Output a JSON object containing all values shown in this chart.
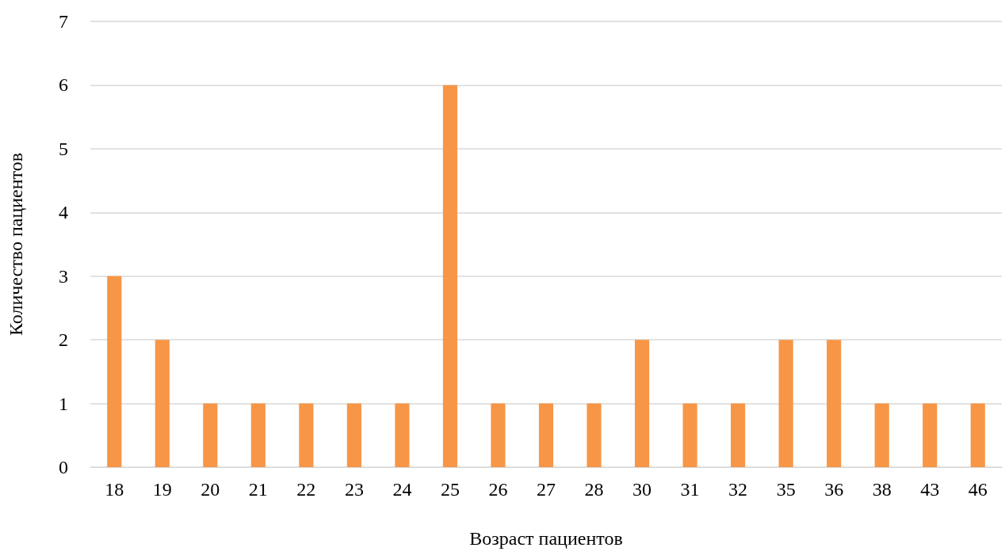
{
  "chart_data": {
    "type": "bar",
    "xlabel": "Возраст пациентов",
    "ylabel": "Количество пациентов",
    "categories": [
      "18",
      "19",
      "20",
      "21",
      "22",
      "23",
      "24",
      "25",
      "26",
      "27",
      "28",
      "30",
      "31",
      "32",
      "35",
      "36",
      "38",
      "43",
      "46"
    ],
    "values": [
      3,
      2,
      1,
      1,
      1,
      1,
      1,
      6,
      1,
      1,
      1,
      2,
      1,
      1,
      2,
      2,
      1,
      1,
      1
    ],
    "color": "#f79646",
    "ylim": [
      0,
      7
    ],
    "yticks": [
      0,
      1,
      2,
      3,
      4,
      5,
      6,
      7
    ],
    "grid": "y"
  }
}
